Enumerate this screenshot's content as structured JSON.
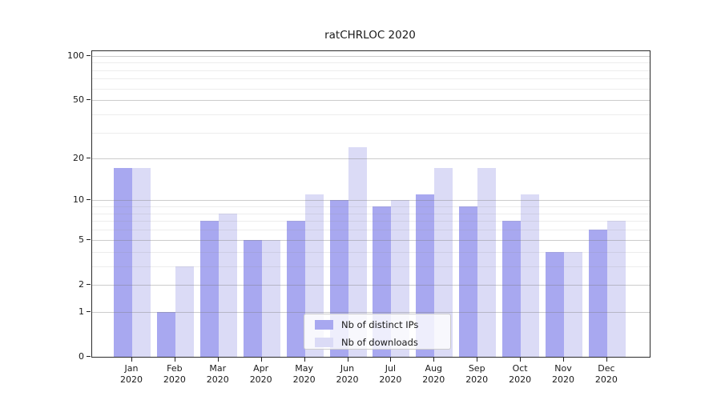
{
  "title": "ratCHRLOC 2020",
  "legend": {
    "items": [
      {
        "label": "Nb of distinct IPs",
        "color": "#a8a8f0"
      },
      {
        "label": "Nb of downloads",
        "color": "#dbdbf6"
      }
    ]
  },
  "axes": {
    "y_tick_labels": [
      "0",
      "1",
      "2",
      "5",
      "10",
      "20",
      "50",
      "100"
    ],
    "x_tick_line2": "2020"
  },
  "chart_data": {
    "type": "bar",
    "title": "ratCHRLOC 2020",
    "categories": [
      "Jan 2020",
      "Feb 2020",
      "Mar 2020",
      "Apr 2020",
      "May 2020",
      "Jun 2020",
      "Jul 2020",
      "Aug 2020",
      "Sep 2020",
      "Oct 2020",
      "Nov 2020",
      "Dec 2020"
    ],
    "series": [
      {
        "name": "Nb of distinct IPs",
        "color": "#a8a8f0",
        "values": [
          17,
          1,
          7,
          5,
          7,
          10,
          9,
          11,
          9,
          7,
          4,
          6
        ]
      },
      {
        "name": "Nb of downloads",
        "color": "#dbdbf6",
        "values": [
          17,
          3,
          8,
          5,
          11,
          24,
          10,
          17,
          17,
          11,
          4,
          7
        ]
      }
    ],
    "xlabel": "",
    "ylabel": "",
    "yscale": "log1p",
    "ylim": [
      0,
      100
    ],
    "yticks": [
      0,
      1,
      2,
      5,
      10,
      20,
      50,
      100
    ],
    "minor_gridlines": [
      3,
      4,
      6,
      7,
      8,
      9,
      30,
      40,
      60,
      70,
      80,
      90
    ],
    "grid": true,
    "legend_position": "lower-center"
  }
}
